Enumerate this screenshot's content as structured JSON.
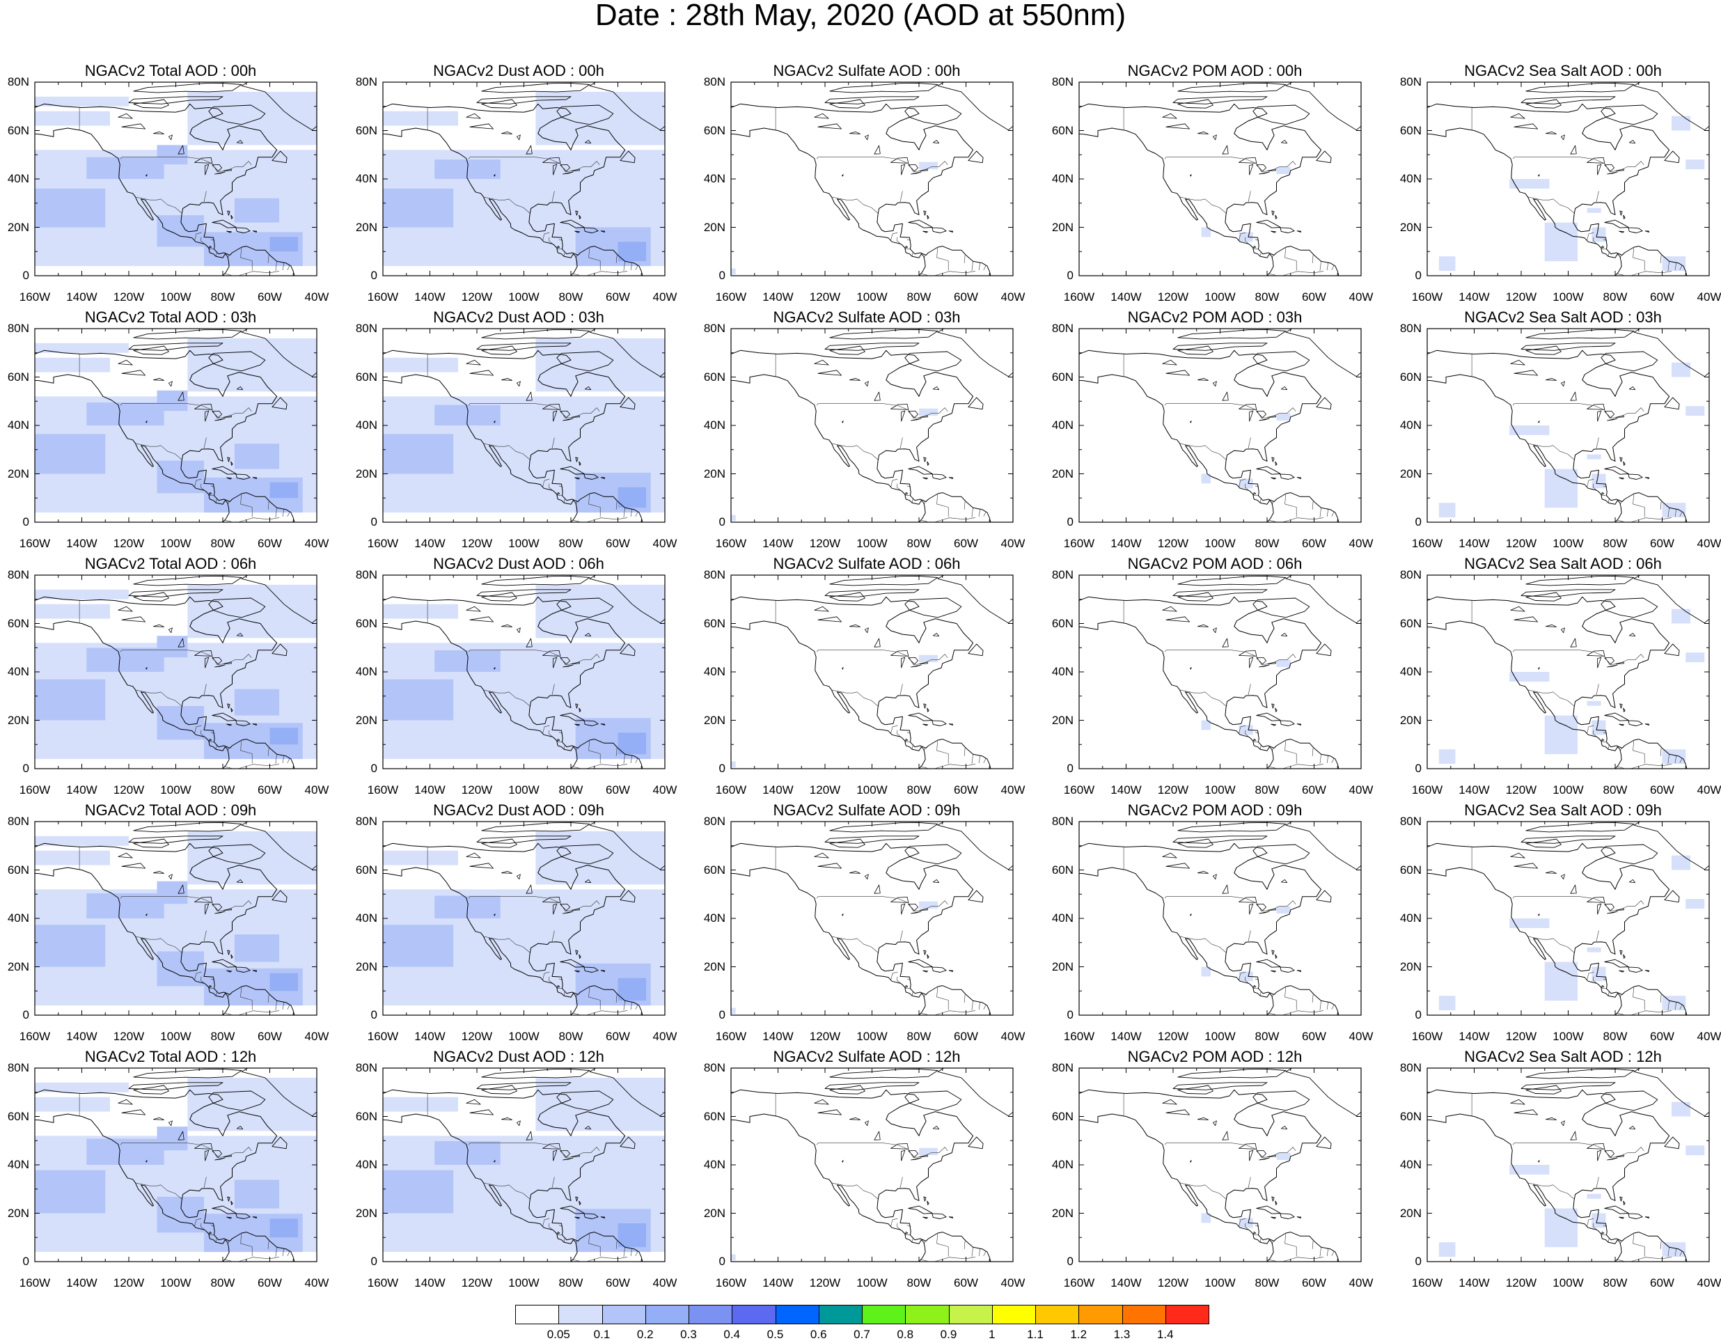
{
  "title": "Date : 28th May, 2020 (AOD at 550nm)",
  "panels": [
    [
      "NGACv2 Total AOD : 00h",
      "NGACv2 Dust AOD : 00h",
      "NGACv2 Sulfate AOD : 00h",
      "NGACv2 POM AOD : 00h",
      "NGACv2 Sea Salt AOD : 00h"
    ],
    [
      "NGACv2 Total AOD : 03h",
      "NGACv2 Dust AOD : 03h",
      "NGACv2 Sulfate AOD : 03h",
      "NGACv2 POM AOD : 03h",
      "NGACv2 Sea Salt AOD : 03h"
    ],
    [
      "NGACv2 Total AOD : 06h",
      "NGACv2 Dust AOD : 06h",
      "NGACv2 Sulfate AOD : 06h",
      "NGACv2 POM AOD : 06h",
      "NGACv2 Sea Salt AOD : 06h"
    ],
    [
      "NGACv2 Total AOD : 09h",
      "NGACv2 Dust AOD : 09h",
      "NGACv2 Sulfate AOD : 09h",
      "NGACv2 POM AOD : 09h",
      "NGACv2 Sea Salt  AOD : 09h"
    ],
    [
      "NGACv2 Total AOD  : 12h",
      "NGACv2 Dust AOD : 12h",
      "NGACv2 Sulfate AOD : 12h",
      "NGACv2 POM  AOD : 12h",
      "NGACv2 Sea Salt  AOD : 12h"
    ]
  ],
  "lat_labels": [
    "80N",
    "60N",
    "40N",
    "20N",
    "0"
  ],
  "lon_labels": [
    "160W",
    "140W",
    "120W",
    "100W",
    "80W",
    "60W",
    "40W"
  ],
  "colorbar": {
    "colors": [
      "#ffffff",
      "#d6e0fb",
      "#b3c4f8",
      "#94aff6",
      "#7b92f3",
      "#5b6af0",
      "#0066ff",
      "#009999",
      "#5ef21a",
      "#8ef21a",
      "#c6f24a",
      "#ffff00",
      "#ffc800",
      "#ff9a00",
      "#ff7300",
      "#ff2a1a"
    ],
    "labels": [
      "0.05",
      "0.1",
      "0.2",
      "0.3",
      "0.4",
      "0.5",
      "0.6",
      "0.7",
      "0.8",
      "0.9",
      "1",
      "1.1",
      "1.2",
      "1.3",
      "1.4"
    ]
  }
}
